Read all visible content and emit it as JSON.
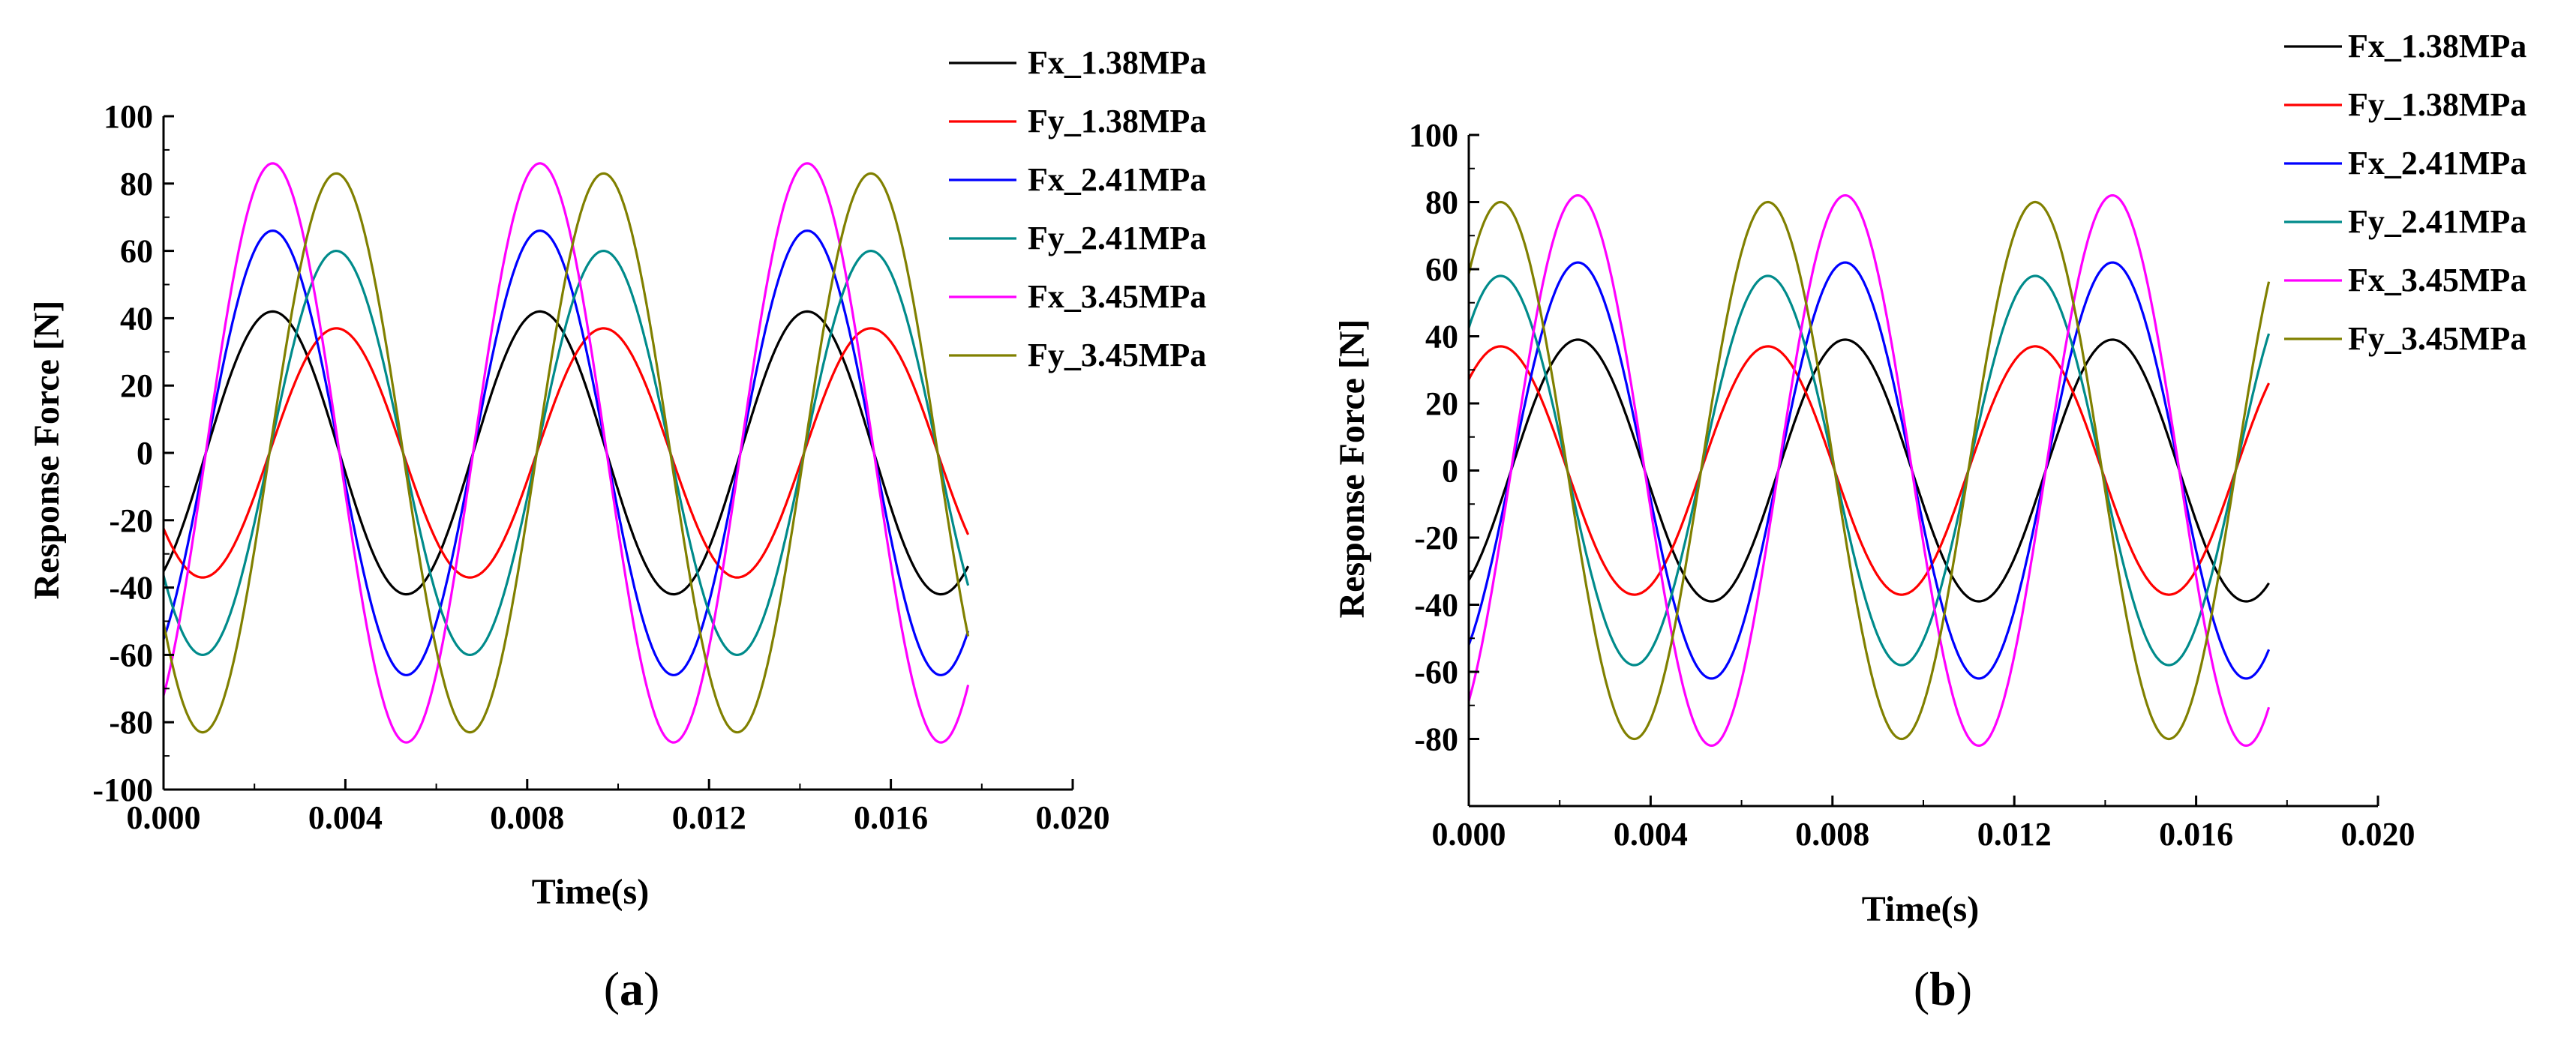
{
  "chart_data": [
    {
      "type": "line",
      "panel": "a",
      "xlabel": "Time(s)",
      "ylabel": "Response Force [N]",
      "xlim": [
        0,
        0.02
      ],
      "ylim": [
        -100,
        100
      ],
      "xticks": [
        0.0,
        0.004,
        0.008,
        0.012,
        0.016,
        0.02
      ],
      "xtick_labels": [
        "0.000",
        "0.004",
        "0.008",
        "0.012",
        "0.016",
        "0.020"
      ],
      "yticks": [
        -100,
        -80,
        -60,
        -40,
        -20,
        0,
        20,
        40,
        60,
        80,
        100
      ],
      "ytick_labels": [
        "-100",
        "-80",
        "-60",
        "-40",
        "-20",
        "0",
        "20",
        "40",
        "60",
        "80",
        "100"
      ],
      "x_end": 0.0177,
      "period": 0.00588,
      "series": [
        {
          "name": "Fx_1.38MPa",
          "color": "#000000",
          "amplitude": 42,
          "peak_time": 0.0024
        },
        {
          "name": "Fy_1.38MPa",
          "color": "#ff0000",
          "amplitude": 37,
          "peak_time": 0.0038
        },
        {
          "name": "Fx_2.41MPa",
          "color": "#0000ff",
          "amplitude": 66,
          "peak_time": 0.0024
        },
        {
          "name": "Fy_2.41MPa",
          "color": "#008b8b",
          "amplitude": 60,
          "peak_time": 0.0038
        },
        {
          "name": "Fx_3.45MPa",
          "color": "#ff00ff",
          "amplitude": 86,
          "peak_time": 0.0024
        },
        {
          "name": "Fy_3.45MPa",
          "color": "#808000",
          "amplitude": 83,
          "peak_time": 0.0038
        }
      ]
    },
    {
      "type": "line",
      "panel": "b",
      "xlabel": "Time(s)",
      "ylabel": "Response Force [N]",
      "xlim": [
        0,
        0.02
      ],
      "ylim": [
        -100,
        100
      ],
      "xticks": [
        0.0,
        0.004,
        0.008,
        0.012,
        0.016,
        0.02
      ],
      "xtick_labels": [
        "0.000",
        "0.004",
        "0.008",
        "0.012",
        "0.016",
        "0.020"
      ],
      "yticks": [
        -80,
        -60,
        -40,
        -20,
        0,
        20,
        40,
        60,
        80,
        100
      ],
      "ytick_labels": [
        "-80",
        "-60",
        "-40",
        "-20",
        "0",
        "20",
        "40",
        "60",
        "80",
        "100"
      ],
      "x_end": 0.0176,
      "period": 0.00588,
      "series": [
        {
          "name": "Fx_1.38MPa",
          "color": "#000000",
          "amplitude": 39,
          "peak_time": 0.0024
        },
        {
          "name": "Fy_1.38MPa",
          "color": "#ff0000",
          "amplitude": 37,
          "peak_time": 0.0007
        },
        {
          "name": "Fx_2.41MPa",
          "color": "#0000ff",
          "amplitude": 62,
          "peak_time": 0.0024
        },
        {
          "name": "Fy_2.41MPa",
          "color": "#008b8b",
          "amplitude": 58,
          "peak_time": 0.0007
        },
        {
          "name": "Fx_3.45MPa",
          "color": "#ff00ff",
          "amplitude": 82,
          "peak_time": 0.0024
        },
        {
          "name": "Fy_3.45MPa",
          "color": "#808000",
          "amplitude": 80,
          "peak_time": 0.0007
        }
      ]
    }
  ],
  "panel_labels": [
    {
      "open": "(",
      "letter": "a",
      "close": ")"
    },
    {
      "open": "(",
      "letter": "b",
      "close": ")"
    }
  ]
}
